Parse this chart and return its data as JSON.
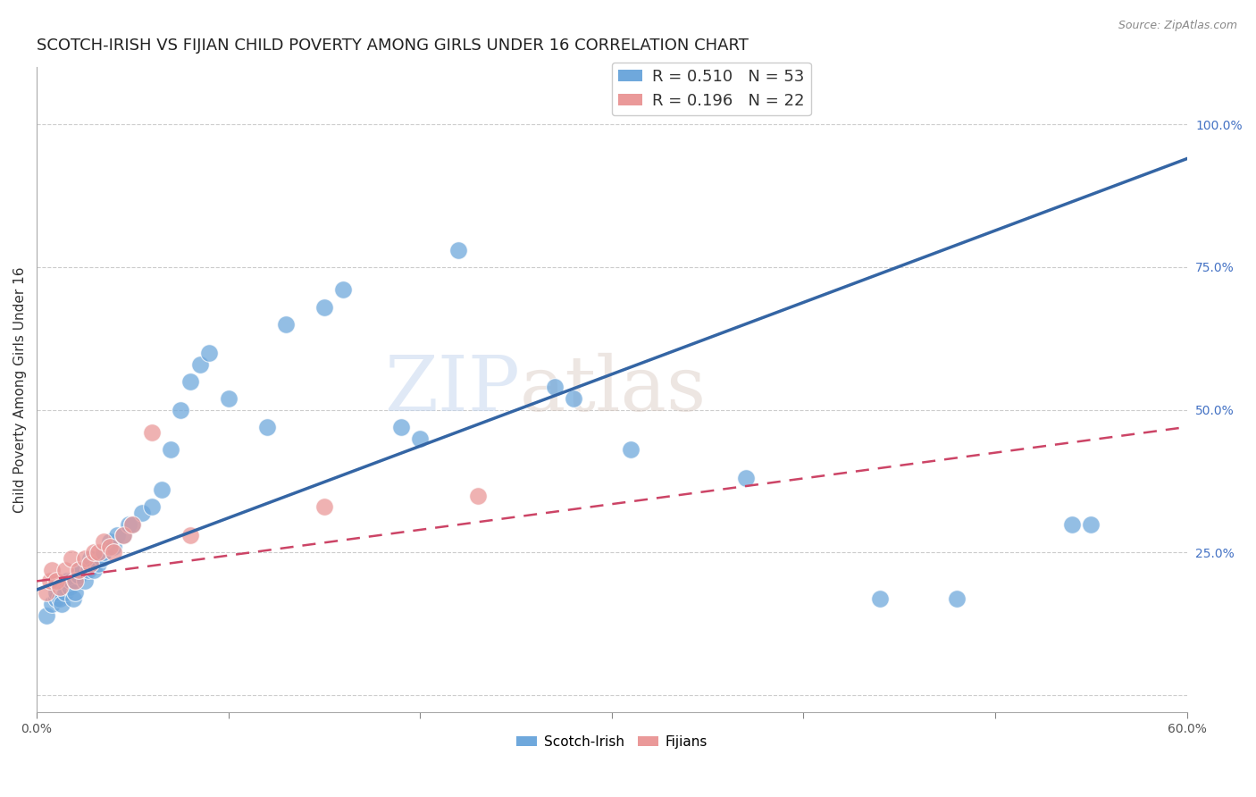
{
  "title": "SCOTCH-IRISH VS FIJIAN CHILD POVERTY AMONG GIRLS UNDER 16 CORRELATION CHART",
  "source": "Source: ZipAtlas.com",
  "ylabel": "Child Poverty Among Girls Under 16",
  "xlim": [
    0.0,
    0.6
  ],
  "ylim": [
    -0.03,
    1.1
  ],
  "x_ticks": [
    0.0,
    0.1,
    0.2,
    0.3,
    0.4,
    0.5,
    0.6
  ],
  "x_tick_labels": [
    "0.0%",
    "",
    "",
    "",
    "",
    "",
    "60.0%"
  ],
  "y_ticks_right": [
    0.0,
    0.25,
    0.5,
    0.75,
    1.0
  ],
  "y_tick_labels_right": [
    "",
    "25.0%",
    "50.0%",
    "75.0%",
    "100.0%"
  ],
  "scotch_irish_color": "#6fa8dc",
  "fijian_color": "#ea9999",
  "scotch_irish_R": 0.51,
  "scotch_irish_N": 53,
  "fijian_R": 0.196,
  "fijian_N": 22,
  "background_color": "#ffffff",
  "watermark_zip": "ZIP",
  "watermark_atlas": "atlas",
  "grid_color": "#cccccc",
  "title_fontsize": 13,
  "label_fontsize": 11,
  "tick_fontsize": 10,
  "legend_fontsize": 13,
  "scotch_irish_x": [
    0.005,
    0.008,
    0.01,
    0.01,
    0.012,
    0.013,
    0.015,
    0.015,
    0.016,
    0.017,
    0.018,
    0.019,
    0.02,
    0.02,
    0.022,
    0.023,
    0.025,
    0.027,
    0.028,
    0.03,
    0.032,
    0.034,
    0.035,
    0.038,
    0.04,
    0.042,
    0.045,
    0.048,
    0.05,
    0.055,
    0.06,
    0.065,
    0.07,
    0.075,
    0.08,
    0.085,
    0.09,
    0.1,
    0.12,
    0.13,
    0.15,
    0.16,
    0.19,
    0.2,
    0.22,
    0.27,
    0.28,
    0.31,
    0.37,
    0.44,
    0.48,
    0.54,
    0.55
  ],
  "scotch_irish_y": [
    0.14,
    0.16,
    0.17,
    0.18,
    0.17,
    0.16,
    0.19,
    0.18,
    0.2,
    0.19,
    0.2,
    0.17,
    0.18,
    0.2,
    0.21,
    0.22,
    0.2,
    0.22,
    0.24,
    0.22,
    0.23,
    0.24,
    0.25,
    0.27,
    0.26,
    0.28,
    0.28,
    0.3,
    0.3,
    0.32,
    0.33,
    0.36,
    0.43,
    0.5,
    0.55,
    0.58,
    0.6,
    0.52,
    0.47,
    0.65,
    0.68,
    0.71,
    0.47,
    0.45,
    0.78,
    0.54,
    0.52,
    0.43,
    0.38,
    0.17,
    0.17,
    0.3,
    0.3
  ],
  "fijian_x": [
    0.005,
    0.007,
    0.008,
    0.01,
    0.012,
    0.015,
    0.018,
    0.02,
    0.022,
    0.025,
    0.028,
    0.03,
    0.032,
    0.035,
    0.038,
    0.04,
    0.045,
    0.05,
    0.06,
    0.08,
    0.15,
    0.23
  ],
  "fijian_y": [
    0.18,
    0.2,
    0.22,
    0.2,
    0.19,
    0.22,
    0.24,
    0.2,
    0.22,
    0.24,
    0.23,
    0.25,
    0.25,
    0.27,
    0.26,
    0.25,
    0.28,
    0.3,
    0.46,
    0.28,
    0.33,
    0.35
  ]
}
